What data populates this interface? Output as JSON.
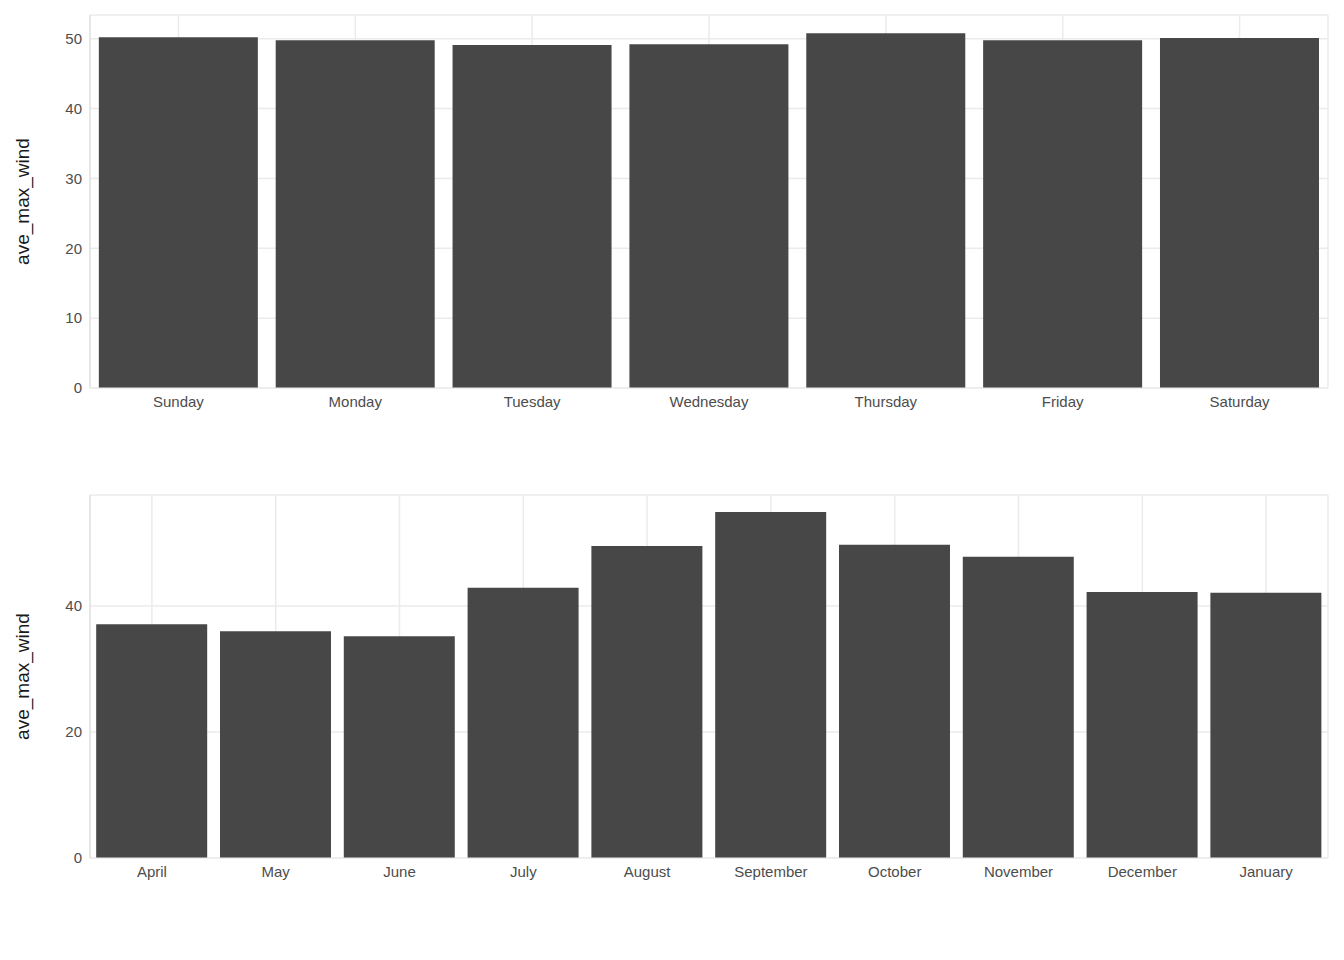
{
  "chart_data": [
    {
      "type": "bar",
      "y_label": "ave_max_wind",
      "categories": [
        "Sunday",
        "Monday",
        "Tuesday",
        "Wednesday",
        "Thursday",
        "Friday",
        "Saturday"
      ],
      "values": [
        50.2,
        49.8,
        49.1,
        49.2,
        50.8,
        49.8,
        50.1
      ],
      "color": "#474747",
      "ylim": [
        0,
        53.4
      ],
      "yticks": [
        0,
        10,
        20,
        30,
        40,
        50
      ],
      "grid": true
    },
    {
      "type": "bar",
      "y_label": "ave_max_wind",
      "categories": [
        "April",
        "May",
        "June",
        "July",
        "August",
        "September",
        "October",
        "November",
        "December",
        "January"
      ],
      "values": [
        37.1,
        36.0,
        35.2,
        42.9,
        49.5,
        54.9,
        49.7,
        47.8,
        42.2,
        42.1
      ],
      "color": "#474747",
      "ylim": [
        0,
        57.6
      ],
      "yticks": [
        0,
        20,
        40
      ],
      "grid": true
    }
  ]
}
